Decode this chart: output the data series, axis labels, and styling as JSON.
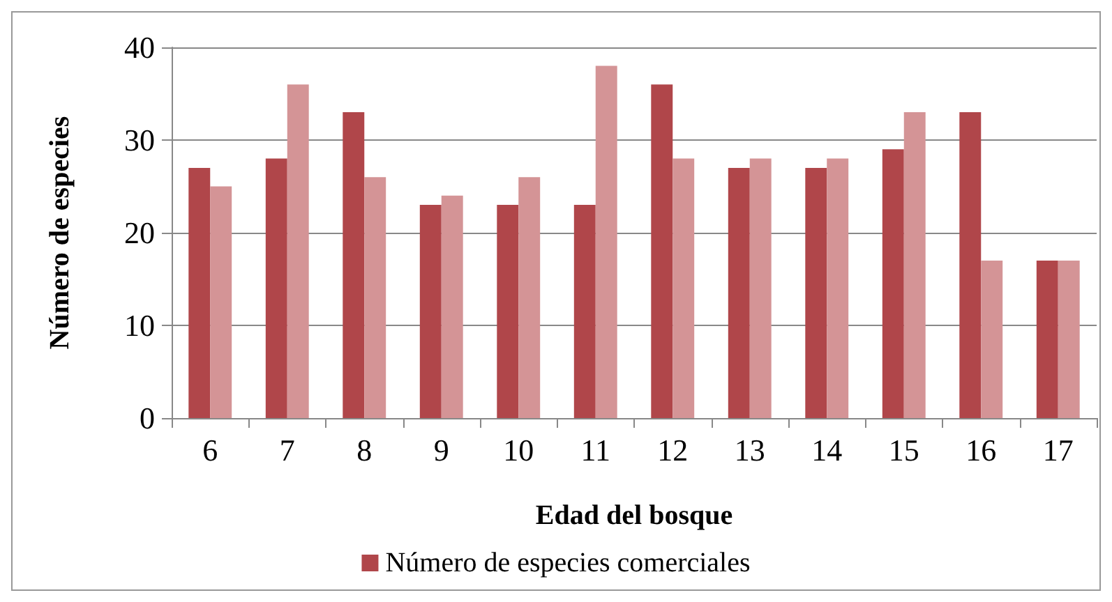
{
  "chart_data": {
    "type": "bar",
    "xlabel": "Edad del bosque",
    "ylabel": "Número de especies",
    "categories": [
      "6",
      "7",
      "8",
      "9",
      "10",
      "11",
      "12",
      "13",
      "14",
      "15",
      "16",
      "17"
    ],
    "series": [
      {
        "name": "Número de especies comerciales",
        "color": "#b0464a",
        "values": [
          27,
          28,
          33,
          23,
          23,
          23,
          36,
          27,
          27,
          29,
          33,
          17
        ]
      },
      {
        "color": "#d49496",
        "values": [
          25,
          36,
          26,
          24,
          26,
          38,
          28,
          28,
          28,
          33,
          17,
          17
        ]
      }
    ],
    "ylim": [
      0,
      40
    ],
    "yticks": [
      0,
      10,
      20,
      30,
      40
    ],
    "grid": "y",
    "legend": "bottom"
  }
}
